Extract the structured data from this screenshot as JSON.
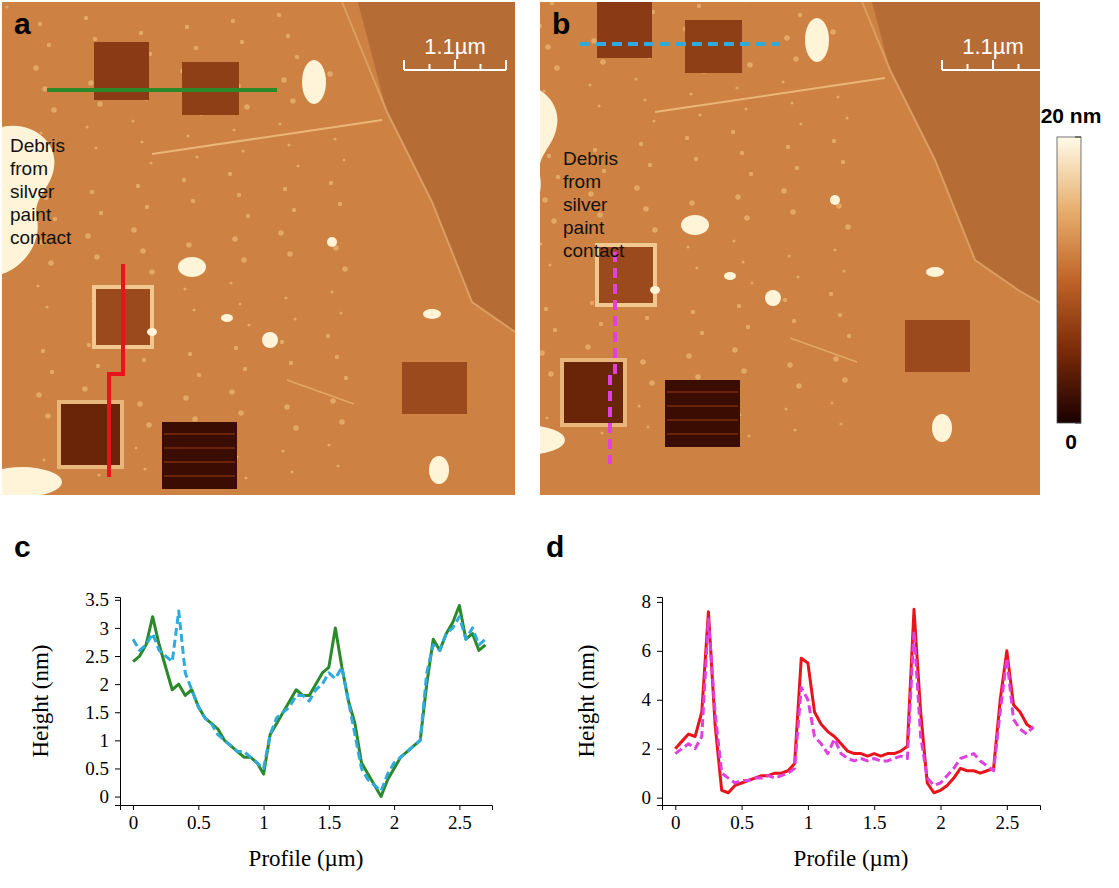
{
  "images": [
    {
      "label": "a",
      "scale_bar": "1.1µm",
      "annotation": "Debris from silver paint contact"
    },
    {
      "label": "b",
      "scale_bar": "1.1µm",
      "annotation": "Debris from silver paint contact"
    }
  ],
  "colorbar": {
    "range": [
      0,
      20
    ],
    "ticks": [
      0,
      {
        "value": 20,
        "label": "20 nm"
      }
    ]
  },
  "chart_data": [
    {
      "type": "line",
      "label": "c",
      "xlabel": "Profile (µm)",
      "ylabel": "Height (nm)",
      "x": [
        0,
        0.05,
        0.1,
        0.15,
        0.2,
        0.25,
        0.3,
        0.35,
        0.4,
        0.45,
        0.5,
        0.55,
        0.6,
        0.65,
        0.7,
        0.75,
        0.8,
        0.85,
        0.9,
        0.95,
        1.0,
        1.05,
        1.1,
        1.15,
        1.2,
        1.25,
        1.3,
        1.35,
        1.4,
        1.45,
        1.5,
        1.55,
        1.6,
        1.65,
        1.7,
        1.75,
        1.8,
        1.85,
        1.9,
        1.95,
        2.0,
        2.05,
        2.1,
        2.15,
        2.2,
        2.25,
        2.3,
        2.35,
        2.4,
        2.45,
        2.5,
        2.55,
        2.6,
        2.65,
        2.7
      ],
      "xlim": [
        -0.1,
        2.75
      ],
      "xticks": [
        0,
        0.5,
        1,
        1.5,
        2,
        2.5
      ],
      "ylim": [
        -0.15,
        3.55
      ],
      "yticks": [
        0,
        0.5,
        1,
        1.5,
        2,
        2.5,
        3,
        3.5
      ],
      "series": [
        {
          "color": "#2a8a2a",
          "line_style": "solid",
          "values": [
            2.4,
            2.5,
            2.7,
            3.2,
            2.7,
            2.3,
            1.9,
            2.0,
            1.8,
            1.9,
            1.6,
            1.4,
            1.3,
            1.2,
            1.0,
            0.9,
            0.8,
            0.7,
            0.7,
            0.6,
            0.4,
            1.1,
            1.3,
            1.5,
            1.7,
            1.9,
            1.8,
            1.8,
            2.0,
            2.2,
            2.3,
            3.0,
            2.3,
            1.7,
            1.3,
            0.6,
            0.4,
            0.2,
            0.0,
            0.3,
            0.5,
            0.7,
            0.8,
            0.9,
            1.0,
            2.0,
            2.8,
            2.6,
            2.9,
            3.1,
            3.4,
            2.8,
            2.9,
            2.6,
            2.7
          ]
        },
        {
          "color": "#2eaadc",
          "line_style": "dashed",
          "values": [
            2.8,
            2.6,
            2.7,
            2.9,
            2.6,
            2.5,
            2.4,
            3.3,
            2.2,
            1.9,
            1.6,
            1.4,
            1.3,
            1.1,
            1.0,
            0.9,
            0.8,
            0.8,
            0.7,
            0.6,
            0.5,
            1.1,
            1.4,
            1.5,
            1.6,
            1.8,
            1.8,
            1.7,
            1.9,
            2.0,
            2.2,
            2.1,
            2.3,
            1.7,
            1.1,
            0.5,
            0.3,
            0.2,
            0.1,
            0.4,
            0.6,
            0.7,
            0.8,
            0.9,
            1.0,
            2.2,
            2.7,
            2.6,
            2.9,
            3.0,
            3.2,
            2.8,
            3.0,
            2.7,
            2.8
          ]
        }
      ]
    },
    {
      "type": "line",
      "label": "d",
      "xlabel": "Profile (µm)",
      "ylabel": "Height (nm)",
      "x": [
        0,
        0.05,
        0.1,
        0.15,
        0.2,
        0.25,
        0.3,
        0.35,
        0.4,
        0.45,
        0.5,
        0.55,
        0.6,
        0.65,
        0.7,
        0.75,
        0.8,
        0.85,
        0.9,
        0.95,
        1.0,
        1.05,
        1.1,
        1.15,
        1.2,
        1.25,
        1.3,
        1.35,
        1.4,
        1.45,
        1.5,
        1.55,
        1.6,
        1.65,
        1.7,
        1.75,
        1.8,
        1.85,
        1.9,
        1.95,
        2.0,
        2.05,
        2.1,
        2.15,
        2.2,
        2.25,
        2.3,
        2.35,
        2.4,
        2.45,
        2.5,
        2.55,
        2.6,
        2.65,
        2.7
      ],
      "xlim": [
        -0.1,
        2.75
      ],
      "xticks": [
        0,
        0.5,
        1,
        1.5,
        2,
        2.5
      ],
      "ylim": [
        -0.3,
        8.2
      ],
      "yticks": [
        0,
        2,
        4,
        6,
        8
      ],
      "series": [
        {
          "color": "#e8141c",
          "line_style": "solid",
          "values": [
            2.0,
            2.3,
            2.6,
            2.5,
            3.5,
            7.6,
            3.0,
            0.3,
            0.2,
            0.5,
            0.6,
            0.7,
            0.8,
            0.9,
            0.9,
            1.0,
            1.0,
            1.1,
            1.4,
            5.7,
            5.5,
            3.5,
            3.0,
            2.7,
            2.5,
            2.2,
            1.9,
            1.8,
            1.8,
            1.7,
            1.8,
            1.7,
            1.8,
            1.8,
            1.9,
            2.1,
            7.7,
            3.5,
            0.6,
            0.2,
            0.3,
            0.5,
            0.8,
            1.2,
            1.1,
            1.1,
            1.0,
            1.1,
            1.2,
            4.0,
            6.0,
            3.8,
            3.5,
            3.0,
            2.8
          ]
        },
        {
          "color": "#e040e0",
          "line_style": "dashed",
          "values": [
            1.8,
            2.0,
            2.2,
            2.0,
            2.5,
            7.3,
            3.5,
            1.0,
            0.8,
            0.6,
            0.7,
            0.7,
            0.8,
            0.8,
            0.9,
            0.8,
            0.9,
            1.0,
            1.2,
            4.5,
            4.0,
            2.5,
            2.2,
            1.8,
            2.4,
            1.8,
            1.6,
            1.5,
            1.6,
            1.5,
            1.6,
            1.5,
            1.5,
            1.6,
            1.7,
            1.6,
            6.8,
            2.5,
            0.8,
            0.5,
            0.6,
            0.9,
            1.2,
            1.6,
            1.7,
            1.8,
            1.5,
            1.3,
            1.1,
            3.5,
            5.7,
            3.2,
            2.8,
            2.6,
            2.9
          ]
        }
      ]
    }
  ]
}
